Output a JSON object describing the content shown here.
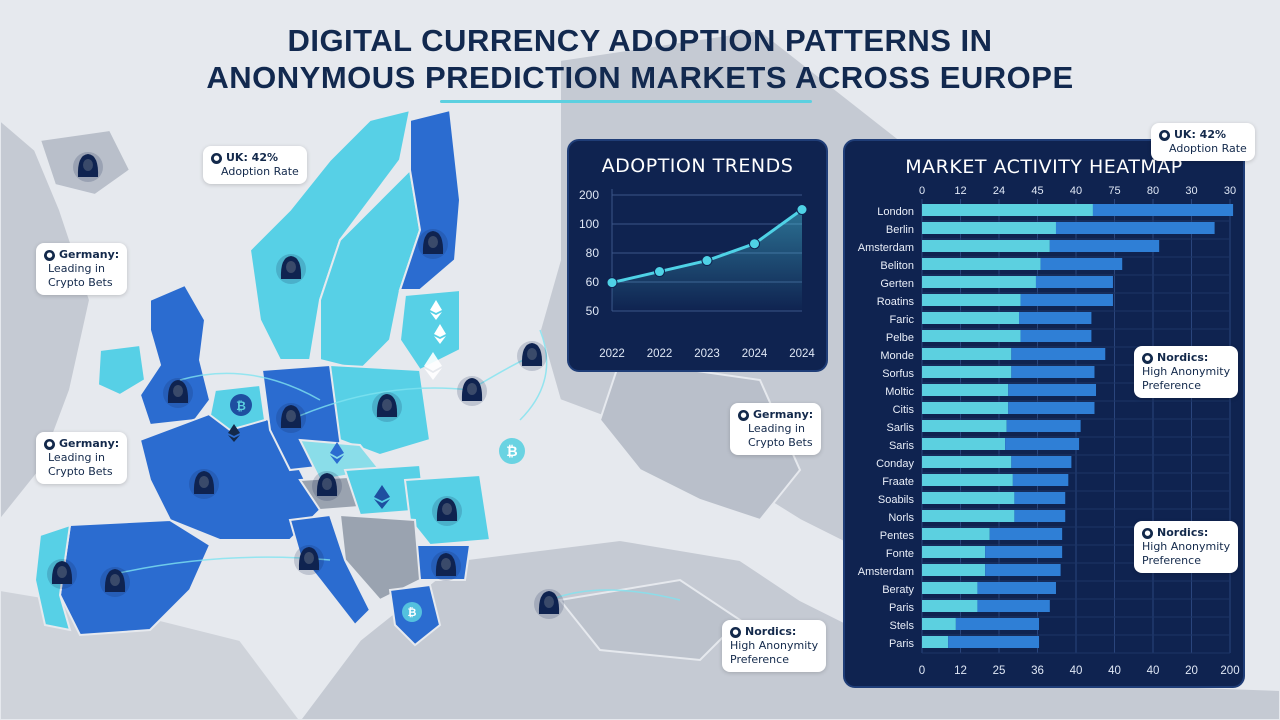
{
  "title": {
    "line1": "DIGITAL CURRENCY ADOPTION PATTERNS IN",
    "line2": "ANONYMOUS PREDICTION MARKETS ACROSS EUROPE"
  },
  "colors": {
    "background": "#e6e9ee",
    "panel": "#0f2350",
    "accent_cyan": "#5cd0e0",
    "accent_blue": "#2f7fd6",
    "country_dark": "#2b6cd0",
    "country_light": "#57d0e6"
  },
  "map": {
    "country_shades": [
      "dark",
      "light",
      "mid",
      "gray"
    ],
    "icons": [
      "anonymous-hooded-user",
      "bitcoin-coin",
      "ethereum-coin"
    ]
  },
  "callouts": [
    {
      "id": "uk-map",
      "head": "UK: 42%",
      "body": [
        "Adoption Rate"
      ]
    },
    {
      "id": "germany-1",
      "head": "Germany:",
      "body": [
        "Leading in",
        "Crypto Bets"
      ]
    },
    {
      "id": "germany-2",
      "head": "Germany:",
      "body": [
        "Leading in",
        "Crypto Bets"
      ]
    },
    {
      "id": "germany-3",
      "head": "Germany:",
      "body": [
        "Leading in",
        "Crypto Bets"
      ]
    },
    {
      "id": "nordics-1",
      "head": "Nordics:",
      "body": [
        "High Anonymity",
        "Preference"
      ]
    },
    {
      "id": "uk-panel",
      "head": "UK: 42%",
      "body": [
        "Adoption Rate"
      ]
    },
    {
      "id": "nordics-2",
      "head": "Nordics:",
      "body": [
        "High Anonymity",
        "Preference"
      ]
    },
    {
      "id": "nordics-3",
      "head": "Nordics:",
      "body": [
        "High Anonymity",
        "Preference"
      ]
    }
  ],
  "chart_data": [
    {
      "type": "line",
      "title": "ADOPTION TRENDS",
      "x": [
        "2022",
        "2022",
        "2023",
        "2024",
        "2024"
      ],
      "series": [
        {
          "values": [
            49,
            68,
            87,
            116,
            175
          ]
        }
      ],
      "y_tick_labels": [
        "200",
        "100",
        "80",
        "60",
        "50"
      ],
      "grid": true,
      "line_color": "#4fd2e6"
    },
    {
      "type": "bar",
      "orientation": "horizontal",
      "stacked": true,
      "title": "MARKET ACTIVITY HEATMAP",
      "top_tick_labels": [
        "0",
        "12",
        "24",
        "45",
        "40",
        "75",
        "80",
        "30",
        "30"
      ],
      "bottom_tick_labels": [
        "0",
        "12",
        "25",
        "36",
        "40",
        "40",
        "40",
        "20",
        "200"
      ],
      "xlim": [
        0,
        200
      ],
      "categories": [
        "London",
        "Berlin",
        "Amsterdam",
        "Beliton",
        "Gerten",
        "Roatins",
        "Faric",
        "Pelbe",
        "Monde",
        "Sorfus",
        "Moltic",
        "Citis",
        "Sarlis",
        "Saris",
        "Conday",
        "Fraate",
        "Soabils",
        "Norls",
        "Pentes",
        "Fonte",
        "Amsterdam",
        "Beraty",
        "Paris",
        "Stels",
        "Paris"
      ],
      "series": [
        {
          "color": "#5cd0e0",
          "values": [
            111,
            87,
            83,
            77,
            74,
            64,
            63,
            64,
            58,
            58,
            56,
            56,
            55,
            54,
            58,
            59,
            60,
            60,
            44,
            41,
            41,
            36,
            36,
            22,
            17
          ]
        },
        {
          "color": "#2f7fd6",
          "values": [
            91,
            103,
            71,
            53,
            50,
            60,
            47,
            46,
            61,
            54,
            57,
            56,
            48,
            48,
            39,
            36,
            33,
            33,
            47,
            50,
            49,
            51,
            47,
            54,
            59
          ]
        }
      ]
    }
  ]
}
